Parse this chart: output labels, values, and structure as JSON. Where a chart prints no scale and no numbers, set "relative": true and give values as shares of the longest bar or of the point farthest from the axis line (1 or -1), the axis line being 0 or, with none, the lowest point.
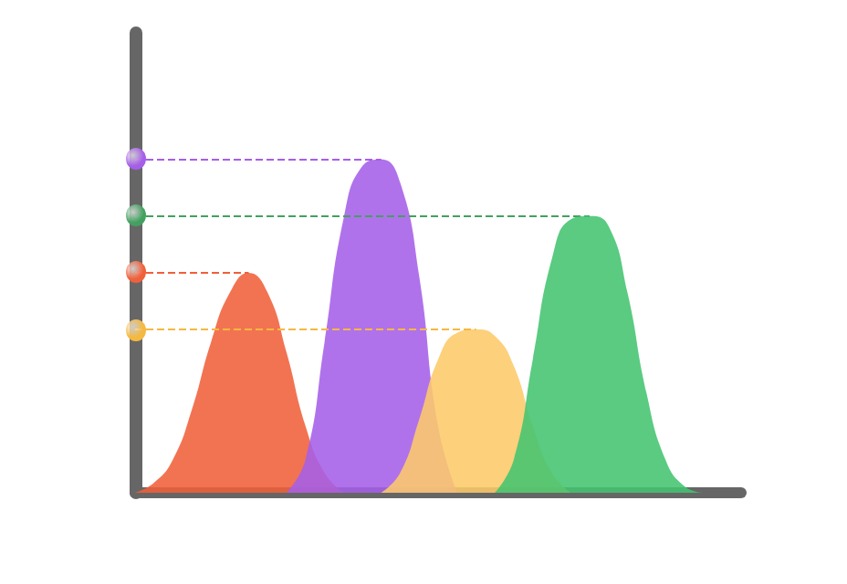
{
  "chart_data": {
    "type": "area",
    "relative": true,
    "categories": [
      null,
      null,
      null,
      null,
      null,
      null,
      null,
      null,
      null,
      null,
      null,
      null,
      null,
      null,
      null,
      null,
      null,
      null,
      null,
      null,
      null,
      null,
      null,
      null,
      null,
      null,
      null,
      null,
      null,
      null,
      null,
      null,
      null
    ],
    "series": [
      {
        "color": "#f0603a",
        "values": [
          0,
          0.03,
          0.1,
          0.25,
          0.45,
          0.6,
          0.66,
          0.6,
          0.42,
          0.2,
          0.06,
          0,
          null,
          null,
          null,
          null,
          null,
          null,
          null,
          null,
          null,
          null,
          null,
          null,
          null,
          null,
          null,
          null,
          null,
          null,
          null,
          null,
          null
        ]
      },
      {
        "color": "#a55ee8",
        "values": [
          null,
          null,
          null,
          null,
          null,
          null,
          null,
          null,
          0,
          0.1,
          0.45,
          0.82,
          0.98,
          1,
          0.93,
          0.65,
          0.2,
          0,
          null,
          null,
          null,
          null,
          null,
          null,
          null,
          null,
          null,
          null,
          null,
          null,
          null,
          null,
          null
        ]
      },
      {
        "color": "#fdc96a",
        "values": [
          null,
          null,
          null,
          null,
          null,
          null,
          null,
          null,
          null,
          null,
          null,
          null,
          null,
          0,
          0.06,
          0.22,
          0.4,
          0.48,
          0.49,
          0.47,
          0.38,
          0.2,
          0.06,
          0,
          null,
          null,
          null,
          null,
          null,
          null,
          null,
          null,
          null
        ]
      },
      {
        "color": "#43c46f",
        "values": [
          null,
          null,
          null,
          null,
          null,
          null,
          null,
          null,
          null,
          null,
          null,
          null,
          null,
          null,
          null,
          null,
          null,
          null,
          null,
          0,
          0.1,
          0.4,
          0.7,
          0.82,
          0.83,
          0.8,
          0.6,
          0.3,
          0.1,
          0.02,
          0,
          null,
          null
        ]
      }
    ],
    "ref_lines": [
      {
        "axis": "y",
        "value": 1,
        "color": "#a55ee8",
        "line_style": "dashed"
      },
      {
        "axis": "y",
        "value": 0.83,
        "color": "#43a060",
        "line_style": "dashed"
      },
      {
        "axis": "y",
        "value": 0.66,
        "color": "#f0603a",
        "line_style": "dashed"
      },
      {
        "axis": "y",
        "value": 0.49,
        "color": "#f5b840",
        "line_style": "dashed"
      }
    ],
    "grid": false
  }
}
